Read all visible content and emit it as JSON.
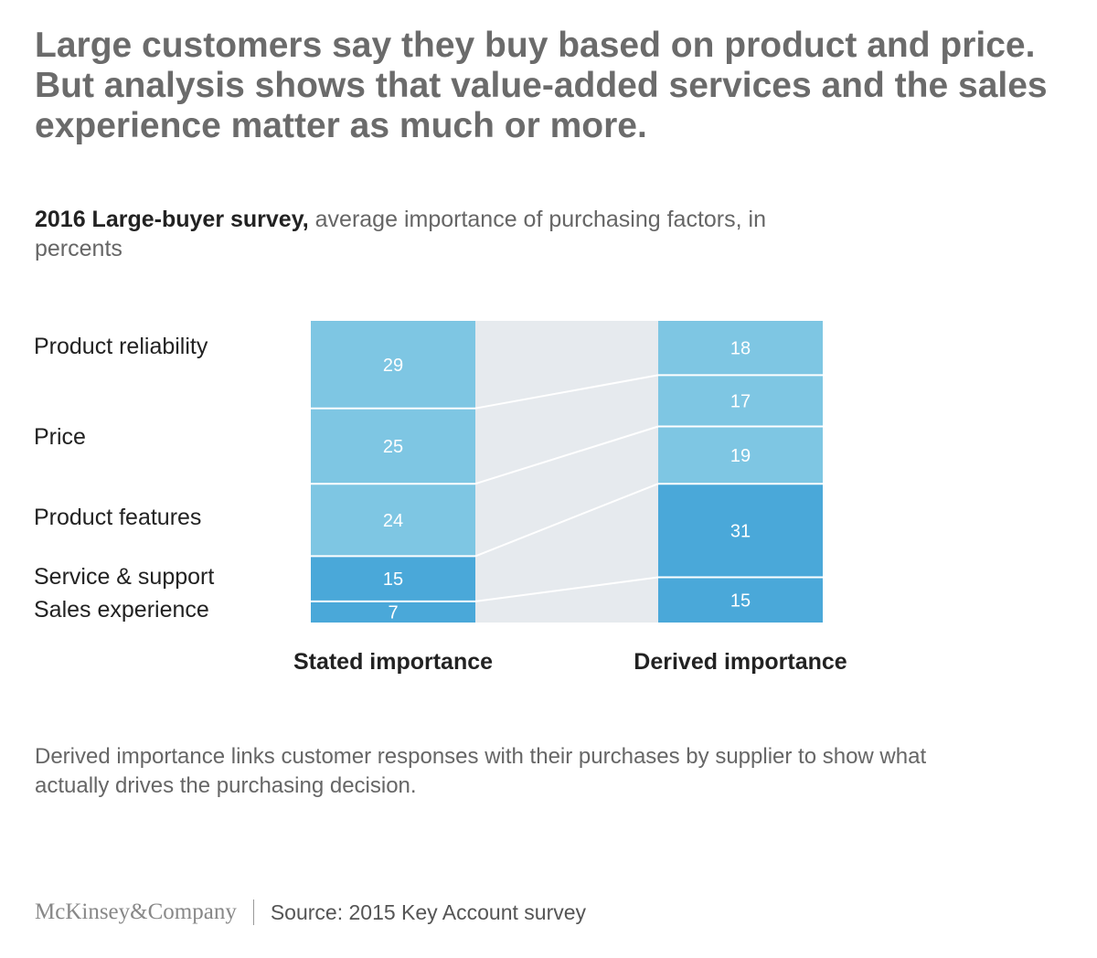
{
  "title": "Large customers say they buy based on product and price. But analysis shows that value-added services and the sales experience matter as much or more.",
  "subtitle": {
    "bold": "2016 Large-buyer survey,",
    "rest": " average importance of purchasing factors, in percents"
  },
  "chart_data": {
    "type": "bar",
    "stacked": true,
    "orientation": "vertical",
    "total": 100,
    "columns": [
      {
        "label": "Stated importance",
        "segments": [
          {
            "label": "Product reliability",
            "value": 29
          },
          {
            "label": "Price",
            "value": 25
          },
          {
            "label": "Product features",
            "value": 24
          },
          {
            "label": "Service & support",
            "value": 15
          },
          {
            "label": "Sales experience",
            "value": 7
          }
        ]
      },
      {
        "label": "Derived importance",
        "segments": [
          {
            "label": "Product reliability",
            "value": 18
          },
          {
            "label": "Price",
            "value": 17
          },
          {
            "label": "Product features",
            "value": 19
          },
          {
            "label": "Service & support",
            "value": 31
          },
          {
            "label": "Sales experience",
            "value": 15
          }
        ]
      }
    ],
    "colors": {
      "product": "#7ec6e3",
      "service": "#4aa8d9",
      "connector_band": "#e6eaee",
      "divider": "#ffffff"
    },
    "grid": false,
    "legend": "left labels"
  },
  "footnote": "Derived importance links customer responses with their purchases by supplier to show what actually drives the purchasing decision.",
  "footer": {
    "logo": "McKinsey&Company",
    "source": "Source: 2015 Key Account survey"
  }
}
